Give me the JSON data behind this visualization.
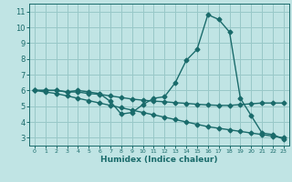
{
  "xlabel": "Humidex (Indice chaleur)",
  "bg_color": "#c0e4e4",
  "grid_color": "#98c8c8",
  "line_color": "#1a6b6b",
  "x_values": [
    0,
    1,
    2,
    3,
    4,
    5,
    6,
    7,
    8,
    9,
    10,
    11,
    12,
    13,
    14,
    15,
    16,
    17,
    18,
    19,
    20,
    21,
    22,
    23
  ],
  "line1": [
    6.0,
    6.0,
    6.0,
    5.9,
    6.0,
    5.9,
    5.8,
    5.3,
    4.5,
    4.6,
    5.1,
    5.5,
    5.6,
    6.5,
    7.9,
    8.6,
    10.8,
    10.5,
    9.7,
    5.5,
    4.4,
    3.3,
    3.2,
    2.9
  ],
  "line2": [
    6.0,
    6.0,
    6.0,
    5.9,
    5.9,
    5.8,
    5.75,
    5.65,
    5.55,
    5.45,
    5.38,
    5.32,
    5.28,
    5.22,
    5.18,
    5.12,
    5.08,
    5.05,
    5.05,
    5.1,
    5.15,
    5.2,
    5.2,
    5.2
  ],
  "line3": [
    6.0,
    5.9,
    5.8,
    5.65,
    5.5,
    5.35,
    5.2,
    5.05,
    4.9,
    4.75,
    4.6,
    4.45,
    4.3,
    4.15,
    4.0,
    3.85,
    3.7,
    3.6,
    3.5,
    3.4,
    3.3,
    3.2,
    3.1,
    3.0
  ],
  "ylim": [
    2.5,
    11.5
  ],
  "xlim": [
    -0.5,
    23.5
  ],
  "yticks": [
    3,
    4,
    5,
    6,
    7,
    8,
    9,
    10,
    11
  ],
  "xticks": [
    0,
    1,
    2,
    3,
    4,
    5,
    6,
    7,
    8,
    9,
    10,
    11,
    12,
    13,
    14,
    15,
    16,
    17,
    18,
    19,
    20,
    21,
    22,
    23
  ]
}
